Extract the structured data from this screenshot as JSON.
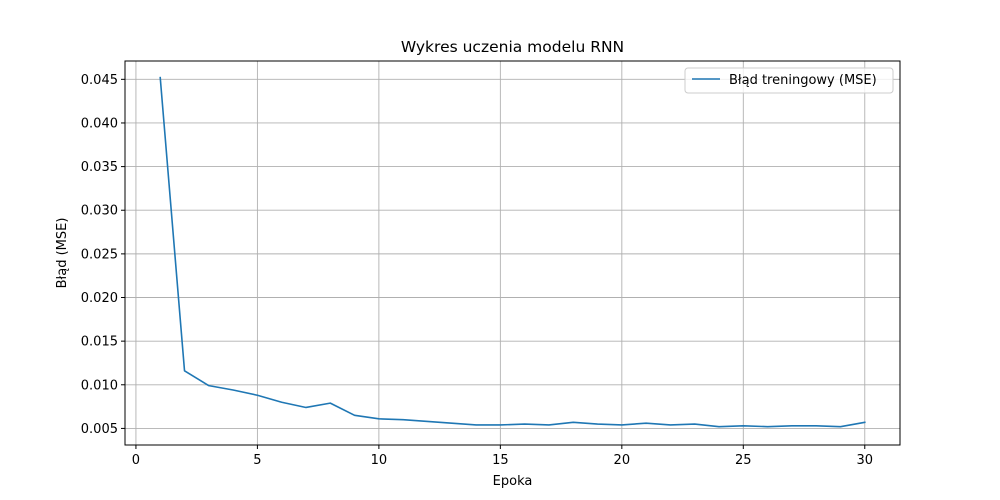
{
  "chart_data": {
    "type": "line",
    "title": "Wykres uczenia modelu RNN",
    "xlabel": "Epoka",
    "ylabel": "Błąd (MSE)",
    "xlim": [
      -0.45,
      31.45
    ],
    "ylim": [
      0.0031,
      0.0471
    ],
    "xticks": [
      0,
      5,
      10,
      15,
      20,
      25,
      30
    ],
    "xtick_labels": [
      "0",
      "5",
      "10",
      "15",
      "20",
      "25",
      "30"
    ],
    "yticks": [
      0.005,
      0.01,
      0.015,
      0.02,
      0.025,
      0.03,
      0.035,
      0.04,
      0.045
    ],
    "ytick_labels": [
      "0.005",
      "0.010",
      "0.015",
      "0.020",
      "0.025",
      "0.030",
      "0.035",
      "0.040",
      "0.045"
    ],
    "grid": true,
    "legend_position": "top-right",
    "series": [
      {
        "name": "Błąd treningowy (MSE)",
        "color": "#1f77b4",
        "x": [
          1,
          2,
          3,
          4,
          5,
          6,
          7,
          8,
          9,
          10,
          11,
          12,
          13,
          14,
          15,
          16,
          17,
          18,
          19,
          20,
          21,
          22,
          23,
          24,
          25,
          26,
          27,
          28,
          29,
          30
        ],
        "y": [
          0.0452,
          0.0116,
          0.0099,
          0.0094,
          0.0088,
          0.008,
          0.0074,
          0.0079,
          0.0065,
          0.0061,
          0.006,
          0.0058,
          0.0056,
          0.0054,
          0.0054,
          0.0055,
          0.0054,
          0.0057,
          0.0055,
          0.0054,
          0.0056,
          0.0054,
          0.0055,
          0.0052,
          0.0053,
          0.0052,
          0.0053,
          0.0053,
          0.0052,
          0.0057
        ]
      }
    ]
  }
}
